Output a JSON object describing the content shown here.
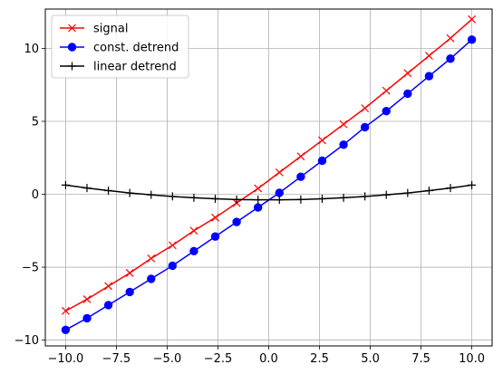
{
  "chart_data": {
    "type": "line",
    "title": "",
    "xlabel": "",
    "ylabel": "",
    "xlim": [
      -11,
      11
    ],
    "ylim": [
      -10.4,
      12.7
    ],
    "grid": true,
    "legend_position": "upper-left",
    "x": [
      -10.0,
      -8.947,
      -7.895,
      -6.842,
      -5.789,
      -4.737,
      -3.684,
      -2.632,
      -1.579,
      -0.526,
      0.526,
      1.579,
      2.632,
      3.684,
      4.737,
      5.789,
      6.842,
      7.895,
      8.947,
      10.0
    ],
    "xticks": [
      -10.0,
      -7.5,
      -5.0,
      -2.5,
      0.0,
      2.5,
      5.0,
      7.5,
      10.0
    ],
    "xtick_labels": [
      "−10.0",
      "−7.5",
      "−5.0",
      "−2.5",
      "0.0",
      "2.5",
      "5.0",
      "7.5",
      "10.0"
    ],
    "yticks": [
      -10,
      -5,
      0,
      5,
      10
    ],
    "ytick_labels": [
      "−10",
      "−5",
      "0",
      "5",
      "10"
    ],
    "series": [
      {
        "name": "signal",
        "color": "#ff0000",
        "marker": "x",
        "values": [
          -8.0,
          -7.2,
          -6.3,
          -5.4,
          -4.4,
          -3.5,
          -2.5,
          -1.6,
          -0.6,
          0.4,
          1.5,
          2.6,
          3.7,
          4.8,
          5.9,
          7.1,
          8.3,
          9.5,
          10.7,
          12.0
        ]
      },
      {
        "name": "const. detrend",
        "color": "#0000ff",
        "marker": "o",
        "values": [
          -9.3,
          -8.5,
          -7.6,
          -6.7,
          -5.8,
          -4.9,
          -3.9,
          -2.9,
          -1.9,
          -0.9,
          0.1,
          1.2,
          2.3,
          3.4,
          4.6,
          5.7,
          6.9,
          8.1,
          9.3,
          10.6
        ]
      },
      {
        "name": "linear detrend",
        "color": "#000000",
        "marker": "+",
        "values": [
          0.63,
          0.43,
          0.25,
          0.09,
          -0.04,
          -0.15,
          -0.24,
          -0.31,
          -0.36,
          -0.38,
          -0.38,
          -0.36,
          -0.31,
          -0.24,
          -0.15,
          -0.04,
          0.09,
          0.25,
          0.43,
          0.63
        ]
      }
    ]
  }
}
